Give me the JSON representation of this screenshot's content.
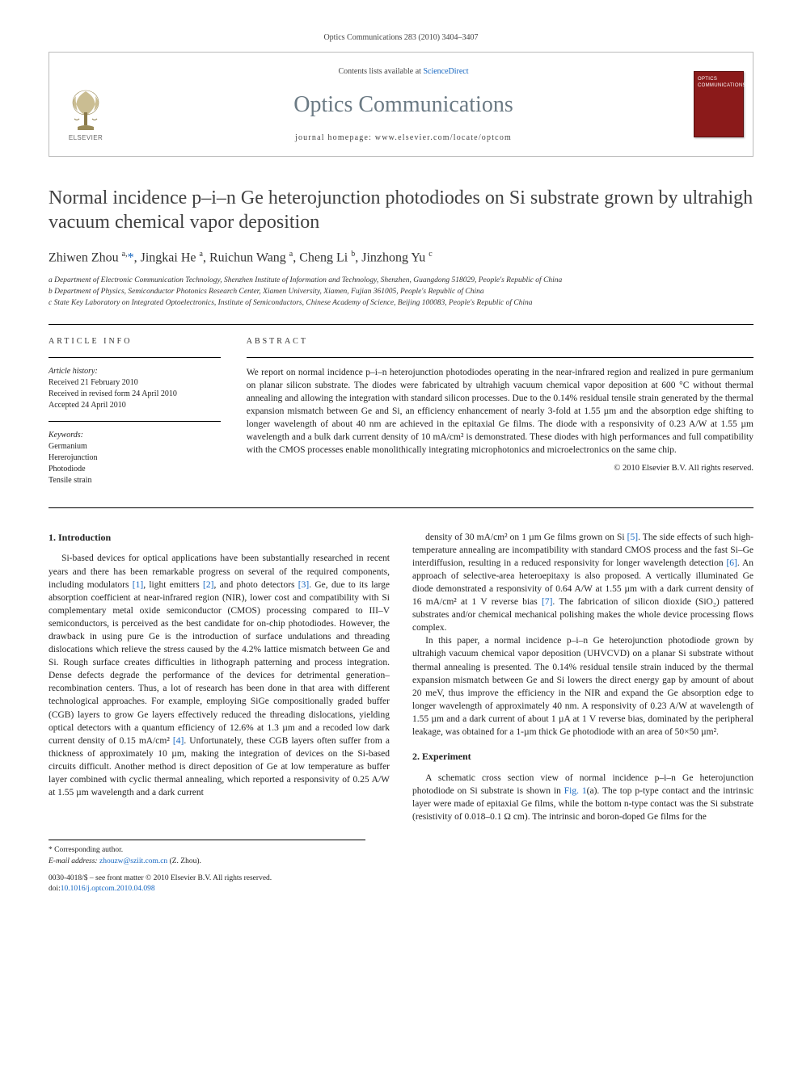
{
  "page_header": "Optics Communications 283 (2010) 3404–3407",
  "journal_box": {
    "contents_prefix": "Contents lists available at ",
    "contents_link": "ScienceDirect",
    "journal_name": "Optics Communications",
    "homepage_label": "journal homepage: www.elsevier.com/locate/optcom",
    "publisher_label": "ELSEVIER",
    "cover_title": "OPTICS COMMUNICATIONS"
  },
  "title": "Normal incidence p–i–n Ge heterojunction photodiodes on Si substrate grown by ultrahigh vacuum chemical vapor deposition",
  "authors_html": "Zhiwen Zhou <sup>a,</sup><a class='corr' href='#'>*</a>, Jingkai He <sup>a</sup>, Ruichun Wang <sup>a</sup>, Cheng Li <sup>b</sup>, Jinzhong Yu <sup>c</sup>",
  "affiliations": [
    "a Department of Electronic Communication Technology, Shenzhen Institute of Information and Technology, Shenzhen, Guangdong 518029, People's Republic of China",
    "b Department of Physics, Semiconductor Photonics Research Center, Xiamen University, Xiamen, Fujian 361005, People's Republic of China",
    "c State Key Laboratory on Integrated Optoelectronics, Institute of Semiconductors, Chinese Academy of Science, Beijing 100083, People's Republic of China"
  ],
  "article_info": {
    "heading": "ARTICLE INFO",
    "history_label": "Article history:",
    "history": [
      "Received 21 February 2010",
      "Received in revised form 24 April 2010",
      "Accepted 24 April 2010"
    ],
    "keywords_label": "Keywords:",
    "keywords": [
      "Germanium",
      "Hererojunction",
      "Photodiode",
      "Tensile strain"
    ]
  },
  "abstract": {
    "heading": "ABSTRACT",
    "text": "We report on normal incidence p–i–n heterojunction photodiodes operating in the near-infrared region and realized in pure germanium on planar silicon substrate. The diodes were fabricated by ultrahigh vacuum chemical vapor deposition at 600 °C without thermal annealing and allowing the integration with standard silicon processes. Due to the 0.14% residual tensile strain generated by the thermal expansion mismatch between Ge and Si, an efficiency enhancement of nearly 3-fold at 1.55 µm and the absorption edge shifting to longer wavelength of about 40 nm are achieved in the epitaxial Ge films. The diode with a responsivity of 0.23 A/W at 1.55 µm wavelength and a bulk dark current density of 10 mA/cm² is demonstrated. These diodes with high performances and full compatibility with the CMOS processes enable monolithically integrating microphotonics and microelectronics on the same chip.",
    "copyright": "© 2010 Elsevier B.V. All rights reserved."
  },
  "sections": {
    "intro_heading": "1. Introduction",
    "intro_p1": "Si-based devices for optical applications have been substantially researched in recent years and there has been remarkable progress on several of the required components, including modulators [1], light emitters [2], and photo detectors [3]. Ge, due to its large absorption coefficient at near-infrared region (NIR), lower cost and compatibility with Si complementary metal oxide semiconductor (CMOS) processing compared to III–V semiconductors, is perceived as the best candidate for on-chip photodiodes. However, the drawback in using pure Ge is the introduction of surface undulations and threading dislocations which relieve the stress caused by the 4.2% lattice mismatch between Ge and Si. Rough surface creates difficulties in lithograph patterning and process integration. Dense defects degrade the performance of the devices for detrimental generation–recombination centers. Thus, a lot of research has been done in that area with different technological approaches. For example, employing SiGe compositionally graded buffer (CGB) layers to grow Ge layers effectively reduced the threading dislocations, yielding optical detectors with a quantum efficiency of 12.6% at 1.3 µm and a recoded low dark current density of 0.15 mA/cm² [4]. Unfortunately, these CGB layers often suffer from a thickness of approximately 10 µm, making the integration of devices on the Si-based circuits difficult. Another method is direct deposition of Ge at low temperature as buffer layer combined with cyclic thermal annealing, which reported a responsivity of 0.25 A/W at 1.55 µm wavelength and a dark current",
    "intro_p2": "density of 30 mA/cm² on 1 µm Ge films grown on Si [5]. The side effects of such high-temperature annealing are incompatibility with standard CMOS process and the fast Si–Ge interdiffusion, resulting in a reduced responsivity for longer wavelength detection [6]. An approach of selective-area heteroepitaxy is also proposed. A vertically illuminated Ge diode demonstrated a responsivity of 0.64 A/W at 1.55 µm with a dark current density of 16 mA/cm² at 1 V reverse bias [7]. The fabrication of silicon dioxide (SiO₂) pattered substrates and/or chemical mechanical polishing makes the whole device processing flows complex.",
    "intro_p3": "In this paper, a normal incidence p–i–n Ge heterojunction photodiode grown by ultrahigh vacuum chemical vapor deposition (UHVCVD) on a planar Si substrate without thermal annealing is presented. The 0.14% residual tensile strain induced by the thermal expansion mismatch between Ge and Si lowers the direct energy gap by amount of about 20 meV, thus improve the efficiency in the NIR and expand the Ge absorption edge to longer wavelength of approximately 40 nm. A responsivity of 0.23 A/W at wavelength of 1.55 µm and a dark current of about 1 µA at 1 V reverse bias, dominated by the peripheral leakage, was obtained for a 1-µm thick Ge photodiode with an area of 50×50 µm².",
    "exp_heading": "2. Experiment",
    "exp_p1": "A schematic cross section view of normal incidence p–i–n Ge heterojunction photodiode on Si substrate is shown in Fig. 1(a). The top p-type contact and the intrinsic layer were made of epitaxial Ge films, while the bottom n-type contact was the Si substrate (resistivity of 0.018–0.1 Ω cm). The intrinsic and boron-doped Ge films for the"
  },
  "footnote": {
    "corr_label": "* Corresponding author.",
    "email_label": "E-mail address:",
    "email": "zhouzw@sziit.com.cn",
    "email_suffix": "(Z. Zhou)."
  },
  "issn_line": "0030-4018/$ – see front matter © 2010 Elsevier B.V. All rights reserved.",
  "doi_prefix": "doi:",
  "doi": "10.1016/j.optcom.2010.04.098",
  "colors": {
    "link": "#1566c0",
    "journal_name": "#6b7a84",
    "cover_bg": "#8b1a1a",
    "text": "#222222",
    "border": "#000000"
  }
}
